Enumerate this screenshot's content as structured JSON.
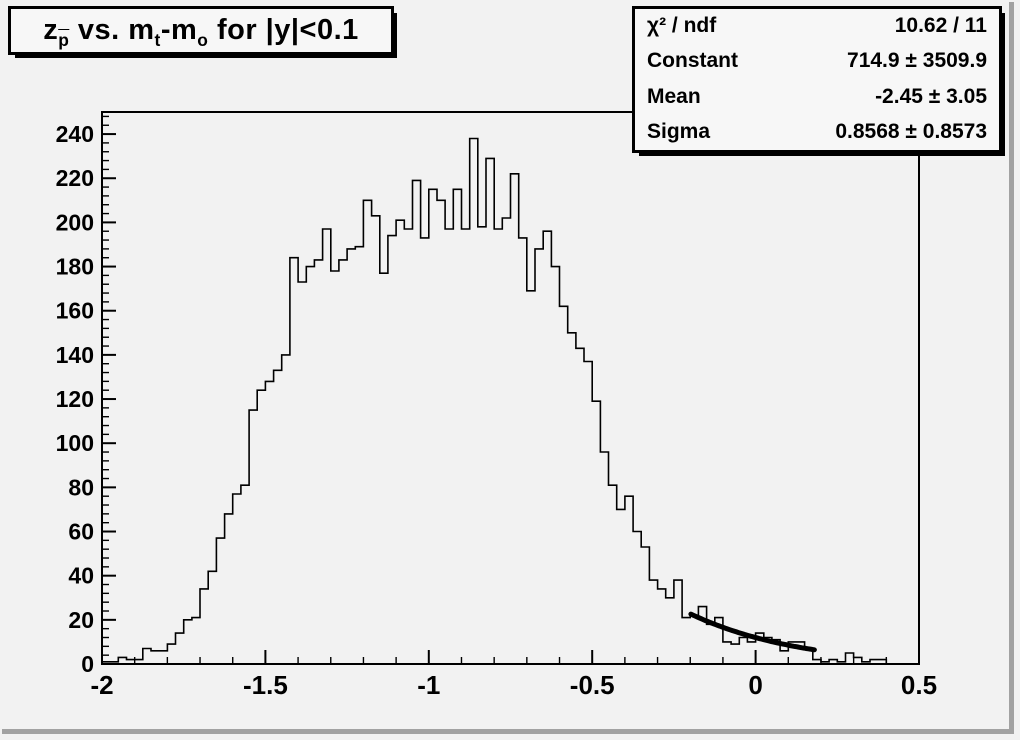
{
  "colors": {
    "background": "#f2f2f2",
    "pave_fill": "#f7f7f7",
    "line": "#000000"
  },
  "title_box": {
    "plain": "z_p vs. m_t-m_o for |y|<0.1",
    "segments": [
      {
        "text": "z",
        "sub": false,
        "overline": false
      },
      {
        "text": "p",
        "sub": true,
        "overline": true
      },
      {
        "text": " vs. m",
        "sub": false,
        "overline": false
      },
      {
        "text": "t",
        "sub": true,
        "overline": false
      },
      {
        "text": "-m",
        "sub": false,
        "overline": false
      },
      {
        "text": "o",
        "sub": true,
        "overline": false
      },
      {
        "text": " for |y|<0.1",
        "sub": false,
        "overline": false
      }
    ]
  },
  "stats_box": {
    "rows": [
      {
        "label": "χ² / ndf",
        "value": "10.62 / 11"
      },
      {
        "label": "Constant",
        "value": "714.9 ± 3509.9"
      },
      {
        "label": "Mean",
        "value": "-2.45 ± 3.05"
      },
      {
        "label": "Sigma",
        "value": "0.8568 ± 0.8573"
      }
    ]
  },
  "chart_data": {
    "type": "bar",
    "subtype": "histogram-step",
    "title": "z_p vs. m_t-m_o for |y|<0.1",
    "xlabel": "",
    "ylabel": "",
    "xlim": [
      -2,
      0.5
    ],
    "ylim": [
      0,
      250
    ],
    "grid": false,
    "legend": false,
    "x_start": -2,
    "bin_width": 0.025,
    "n_bins": 100,
    "values": [
      1,
      1,
      3,
      2,
      2,
      7,
      6,
      6,
      9,
      14,
      20,
      21,
      34,
      42,
      57,
      68,
      77,
      81,
      115,
      124,
      128,
      133,
      140,
      184,
      173,
      180,
      183,
      197,
      178,
      183,
      188,
      189,
      210,
      203,
      177,
      194,
      201,
      197,
      219,
      193,
      215,
      210,
      197,
      215,
      197,
      238,
      198,
      229,
      197,
      202,
      222,
      193,
      169,
      188,
      196,
      180,
      162,
      150,
      143,
      137,
      119,
      96,
      81,
      70,
      76,
      60,
      53,
      38,
      34,
      30,
      38,
      21,
      22,
      26,
      18,
      21,
      10,
      9,
      12,
      10,
      14,
      12,
      11,
      6,
      10,
      10,
      7,
      2,
      1,
      2,
      1,
      5,
      3,
      1,
      2,
      2,
      0,
      0,
      0,
      0
    ],
    "x_axis": {
      "major_ticks": [
        -2,
        -1.5,
        -1,
        -0.5,
        0,
        0.5
      ],
      "labels": [
        "-2",
        "-1.5",
        "-1",
        "-0.5",
        "0",
        "0.5"
      ],
      "minor_step": 0.1
    },
    "y_axis": {
      "major_step": 20,
      "minor_step": 4,
      "labels": [
        "0",
        "20",
        "40",
        "60",
        "80",
        "100",
        "120",
        "140",
        "160",
        "180",
        "200",
        "220",
        "240"
      ]
    },
    "fit": {
      "type": "gaussian",
      "constant": 714.9,
      "mean": -2.45,
      "sigma": 0.8568,
      "chi2": 10.62,
      "ndf": 11,
      "draw_range": [
        -0.198,
        0.18
      ]
    }
  }
}
